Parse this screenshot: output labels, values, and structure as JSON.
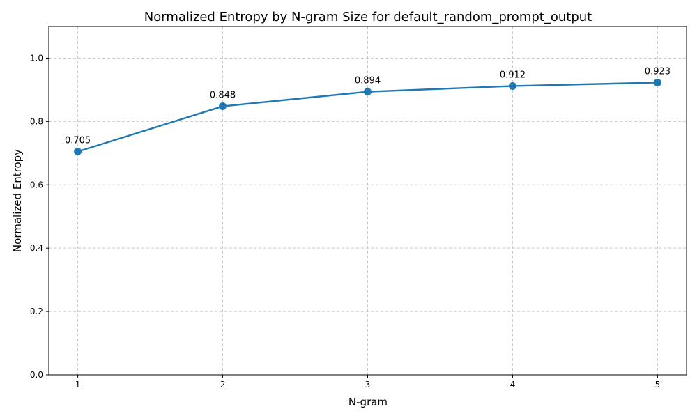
{
  "chart_data": {
    "type": "line",
    "title": "Normalized Entropy by N-gram Size for default_random_prompt_output",
    "xlabel": "N-gram",
    "ylabel": "Normalized Entropy",
    "x": [
      1,
      2,
      3,
      4,
      5
    ],
    "x_tick_labels": [
      "1",
      "2",
      "3",
      "4",
      "5"
    ],
    "xlim": [
      0.8,
      5.2
    ],
    "ylim": [
      0.0,
      1.1
    ],
    "y_ticks": [
      0.0,
      0.2,
      0.4,
      0.6,
      0.8,
      1.0
    ],
    "y_tick_labels": [
      "0.0",
      "0.2",
      "0.4",
      "0.6",
      "0.8",
      "1.0"
    ],
    "series": [
      {
        "values": [
          0.705,
          0.848,
          0.894,
          0.912,
          0.923
        ],
        "data_labels": [
          "0.705",
          "0.848",
          "0.894",
          "0.912",
          "0.923"
        ],
        "color": "#1f77b4"
      }
    ],
    "grid": true,
    "markers": "circle"
  }
}
